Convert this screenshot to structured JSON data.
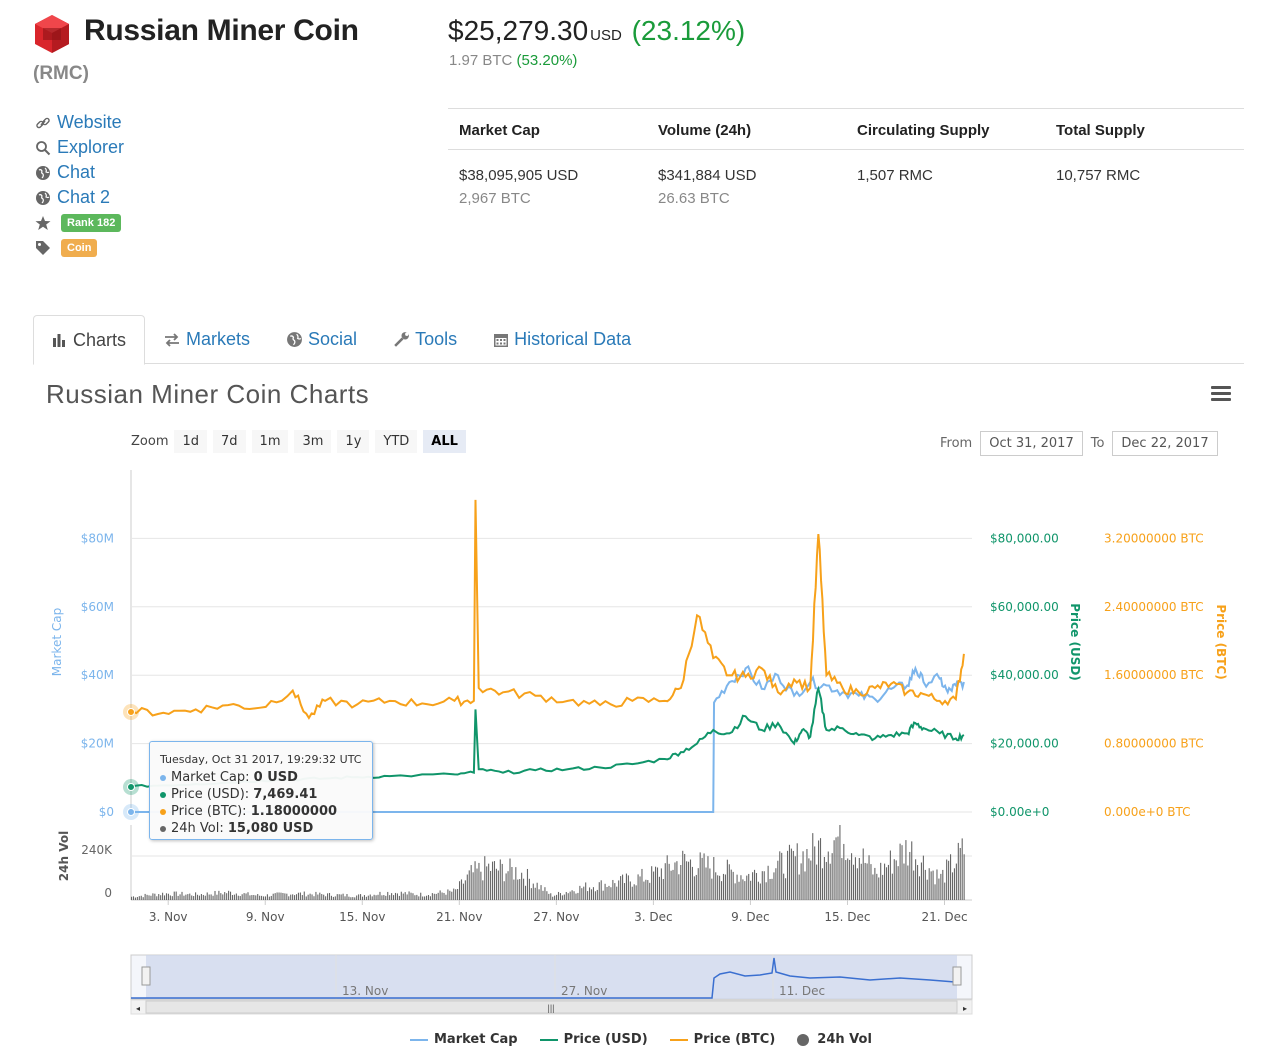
{
  "coin": {
    "name": "Russian Miner Coin",
    "symbol": "(RMC)",
    "price_usd": "$25,279.30",
    "price_currency": "USD",
    "price_change": "(23.12%)",
    "price_btc": "1.97 BTC",
    "price_btc_change": "(53.20%)"
  },
  "links": {
    "website": "Website",
    "explorer": "Explorer",
    "chat": "Chat",
    "chat2": "Chat 2",
    "rank": "Rank 182",
    "type": "Coin"
  },
  "stats": {
    "headers": [
      "Market Cap",
      "Volume (24h)",
      "Circulating Supply",
      "Total Supply"
    ],
    "market_cap": "$38,095,905 USD",
    "market_cap_btc": "2,967 BTC",
    "volume": "$341,884 USD",
    "volume_btc": "26.63 BTC",
    "circulating": "1,507 RMC",
    "total": "10,757 RMC"
  },
  "tabs": [
    "Charts",
    "Markets",
    "Social",
    "Tools",
    "Historical Data"
  ],
  "chart_section": {
    "title": "Russian Miner Coin Charts",
    "zoom_label": "Zoom",
    "zoom_options": [
      "1d",
      "7d",
      "1m",
      "3m",
      "1y",
      "YTD",
      "ALL"
    ],
    "zoom_selected": "ALL",
    "from_label": "From",
    "from_value": "Oct 31, 2017",
    "to_label": "To",
    "to_value": "Dec 22, 2017"
  },
  "tooltip": {
    "date": "Tuesday, Oct 31 2017, 19:29:32 UTC",
    "market_cap_label": "Market Cap:",
    "market_cap_value": "0 USD",
    "price_usd_label": "Price (USD):",
    "price_usd_value": "7,469.41",
    "price_btc_label": "Price (BTC):",
    "price_btc_value": "1.18000000",
    "vol_label": "24h Vol:",
    "vol_value": "15,080 USD"
  },
  "colors": {
    "market_cap": "#7cb5ec",
    "price_usd": "#10956a",
    "price_btc": "#f7a11a",
    "volume": "#666666",
    "link": "#2a7ab8",
    "positive": "#1a9b3a"
  },
  "chart_data": {
    "type": "line",
    "x": [
      "3. Nov",
      "9. Nov",
      "15. Nov",
      "21. Nov",
      "27. Nov",
      "3. Dec",
      "9. Dec",
      "15. Dec",
      "21. Dec"
    ],
    "y_axes": {
      "market_cap": {
        "label": "Market Cap",
        "ticks": [
          "$0",
          "$20M",
          "$40M",
          "$60M",
          "$80M"
        ]
      },
      "price_usd": {
        "label": "Price (USD)",
        "ticks": [
          "$0.00e+0",
          "$20,000.00",
          "$40,000.00",
          "$60,000.00",
          "$80,000.00"
        ]
      },
      "price_btc": {
        "label": "Price (BTC)",
        "ticks": [
          "0.000e+0 BTC",
          "0.80000000 BTC",
          "1.60000000 BTC",
          "2.40000000 BTC",
          "3.20000000 BTC"
        ]
      },
      "volume": {
        "label": "24h Vol",
        "ticks": [
          "0",
          "240K"
        ]
      }
    },
    "series": [
      {
        "name": "Market Cap",
        "color": "#7cb5ec",
        "values": [
          [
            0,
            0
          ],
          [
            36,
            0
          ],
          [
            36.05,
            32
          ],
          [
            37,
            38
          ],
          [
            38,
            42
          ],
          [
            39,
            36
          ],
          [
            40,
            40
          ],
          [
            41,
            34
          ],
          [
            42,
            38
          ],
          [
            43,
            37
          ],
          [
            44,
            35
          ],
          [
            45,
            34
          ],
          [
            46,
            33
          ],
          [
            47,
            36
          ],
          [
            48,
            37
          ],
          [
            48.5,
            42
          ],
          [
            49,
            38
          ],
          [
            50,
            39
          ],
          [
            50.5,
            35
          ],
          [
            51,
            37
          ],
          [
            51.5,
            38
          ]
        ]
      },
      {
        "name": "Price (USD)",
        "color": "#10956a",
        "values": [
          [
            0,
            7469
          ],
          [
            2,
            7800
          ],
          [
            4,
            8200
          ],
          [
            6,
            8600
          ],
          [
            8,
            9200
          ],
          [
            10,
            9500
          ],
          [
            12,
            9800
          ],
          [
            14,
            10200
          ],
          [
            16,
            10500
          ],
          [
            20,
            11000
          ],
          [
            21.2,
            11500
          ],
          [
            21.3,
            30000
          ],
          [
            21.5,
            12500
          ],
          [
            23,
            11500
          ],
          [
            25,
            12200
          ],
          [
            27,
            12500
          ],
          [
            29,
            13000
          ],
          [
            31,
            14000
          ],
          [
            33,
            15500
          ],
          [
            34,
            17500
          ],
          [
            35,
            20000
          ],
          [
            36,
            24000
          ],
          [
            37,
            23000
          ],
          [
            38,
            28000
          ],
          [
            39,
            24000
          ],
          [
            40,
            26000
          ],
          [
            41,
            20000
          ],
          [
            41.5,
            24000
          ],
          [
            42,
            22000
          ],
          [
            42.5,
            36000
          ],
          [
            43,
            24000
          ],
          [
            44,
            24500
          ],
          [
            45,
            22500
          ],
          [
            46,
            21500
          ],
          [
            47,
            22500
          ],
          [
            48,
            23000
          ],
          [
            48.5,
            26000
          ],
          [
            49,
            24500
          ],
          [
            50,
            23000
          ],
          [
            51,
            21500
          ],
          [
            51.5,
            22500
          ]
        ]
      },
      {
        "name": "Price (BTC)",
        "color": "#f7a11a",
        "values": [
          [
            0,
            1.18
          ],
          [
            2,
            1.16
          ],
          [
            4,
            1.2
          ],
          [
            6,
            1.25
          ],
          [
            8,
            1.22
          ],
          [
            10,
            1.42
          ],
          [
            11,
            1.1
          ],
          [
            12,
            1.3
          ],
          [
            14,
            1.26
          ],
          [
            16,
            1.3
          ],
          [
            18,
            1.27
          ],
          [
            20,
            1.3
          ],
          [
            21.2,
            1.3
          ],
          [
            21.3,
            3.65
          ],
          [
            21.5,
            1.45
          ],
          [
            23,
            1.4
          ],
          [
            25,
            1.36
          ],
          [
            27,
            1.3
          ],
          [
            29,
            1.25
          ],
          [
            31,
            1.3
          ],
          [
            33,
            1.3
          ],
          [
            34,
            1.45
          ],
          [
            35,
            2.3
          ],
          [
            36,
            1.8
          ],
          [
            37,
            1.6
          ],
          [
            38,
            1.58
          ],
          [
            39,
            1.68
          ],
          [
            40,
            1.4
          ],
          [
            41,
            1.55
          ],
          [
            42,
            1.45
          ],
          [
            42.5,
            3.25
          ],
          [
            43,
            1.6
          ],
          [
            44,
            1.45
          ],
          [
            45,
            1.4
          ],
          [
            46,
            1.45
          ],
          [
            47,
            1.5
          ],
          [
            48,
            1.4
          ],
          [
            49,
            1.38
          ],
          [
            50,
            1.3
          ],
          [
            51,
            1.32
          ],
          [
            51.5,
            1.85
          ]
        ]
      },
      {
        "name": "24h Vol",
        "color": "#666666",
        "values": [
          [
            0,
            15080
          ],
          [
            2,
            30000
          ],
          [
            4,
            25000
          ],
          [
            6,
            35000
          ],
          [
            8,
            20000
          ],
          [
            10,
            30000
          ],
          [
            12,
            25000
          ],
          [
            14,
            20000
          ],
          [
            16,
            35000
          ],
          [
            18,
            25000
          ],
          [
            20,
            40000
          ],
          [
            21,
            120000
          ],
          [
            22,
            150000
          ],
          [
            24,
            130000
          ],
          [
            26,
            20000
          ],
          [
            28,
            60000
          ],
          [
            30,
            80000
          ],
          [
            32,
            110000
          ],
          [
            34,
            180000
          ],
          [
            36,
            150000
          ],
          [
            38,
            110000
          ],
          [
            40,
            160000
          ],
          [
            42,
            220000
          ],
          [
            44,
            300000
          ],
          [
            46,
            120000
          ],
          [
            48,
            240000
          ],
          [
            50,
            100000
          ],
          [
            51.5,
            230000
          ]
        ]
      }
    ]
  },
  "navigator": {
    "labels": [
      "13. Nov",
      "27. Nov",
      "11. Dec"
    ]
  },
  "legend": [
    "Market Cap",
    "Price (USD)",
    "Price (BTC)",
    "24h Vol"
  ]
}
